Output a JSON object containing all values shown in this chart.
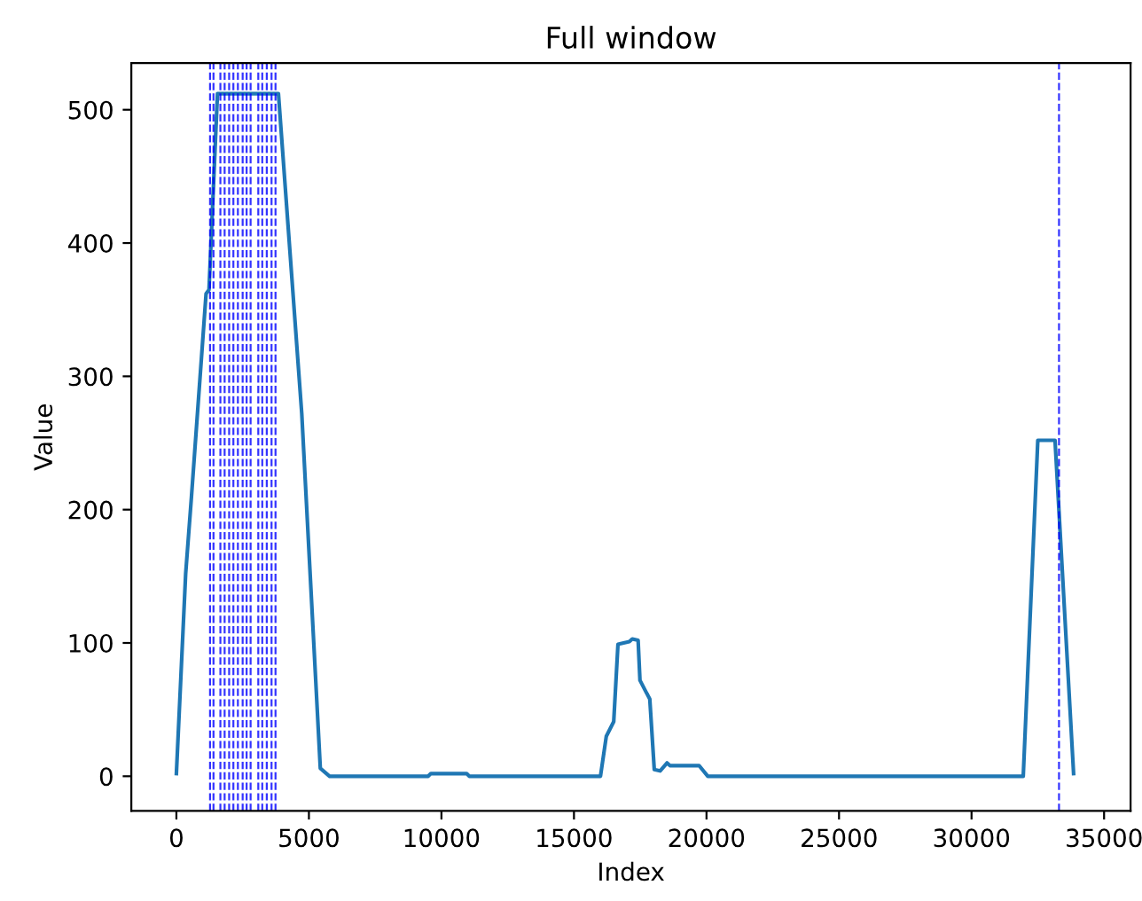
{
  "chart_data": {
    "type": "line",
    "title": "Full window",
    "xlabel": "Index",
    "ylabel": "Value",
    "x": [
      0,
      350,
      570,
      1120,
      1230,
      1550,
      3850,
      4730,
      5430,
      5780,
      9500,
      9600,
      10950,
      11050,
      16000,
      16220,
      16500,
      16660,
      17090,
      17200,
      17420,
      17490,
      17750,
      17860,
      18030,
      18250,
      18510,
      18620,
      19720,
      20050,
      31950,
      32500,
      33150,
      33850
    ],
    "series": [
      {
        "color": "#1f77b4",
        "values": [
          2,
          152,
          210,
          362,
          365,
          512,
          512,
          272,
          6,
          0,
          0,
          2,
          2,
          0,
          0,
          30,
          41,
          99,
          101,
          103,
          102,
          72,
          62,
          58,
          5,
          4,
          10,
          8,
          8,
          0,
          0,
          252,
          252,
          2
        ]
      }
    ],
    "xlim": [
      -1700,
      36000
    ],
    "ylim": [
      -26,
      535
    ],
    "xticks": [
      0,
      5000,
      10000,
      15000,
      20000,
      25000,
      30000,
      35000
    ],
    "yticks": [
      0,
      100,
      200,
      300,
      400,
      500
    ],
    "grid": false,
    "legend": false,
    "ref_lines": [
      {
        "axis": "x",
        "value": 1270,
        "color": "#0000ff",
        "line_style": "dashed"
      },
      {
        "axis": "x",
        "value": 1400,
        "color": "#0000ff",
        "line_style": "dashed"
      },
      {
        "axis": "x",
        "value": 1660,
        "color": "#0000ff",
        "line_style": "dashed"
      },
      {
        "axis": "x",
        "value": 1820,
        "color": "#0000ff",
        "line_style": "dashed"
      },
      {
        "axis": "x",
        "value": 1990,
        "color": "#0000ff",
        "line_style": "dashed"
      },
      {
        "axis": "x",
        "value": 2150,
        "color": "#0000ff",
        "line_style": "dashed"
      },
      {
        "axis": "x",
        "value": 2320,
        "color": "#0000ff",
        "line_style": "dashed"
      },
      {
        "axis": "x",
        "value": 2500,
        "color": "#0000ff",
        "line_style": "dashed"
      },
      {
        "axis": "x",
        "value": 2650,
        "color": "#0000ff",
        "line_style": "dashed"
      },
      {
        "axis": "x",
        "value": 2800,
        "color": "#0000ff",
        "line_style": "dashed"
      },
      {
        "axis": "x",
        "value": 3090,
        "color": "#0000ff",
        "line_style": "dashed"
      },
      {
        "axis": "x",
        "value": 3240,
        "color": "#0000ff",
        "line_style": "dashed"
      },
      {
        "axis": "x",
        "value": 3410,
        "color": "#0000ff",
        "line_style": "dashed"
      },
      {
        "axis": "x",
        "value": 3590,
        "color": "#0000ff",
        "line_style": "dashed"
      },
      {
        "axis": "x",
        "value": 3740,
        "color": "#0000ff",
        "line_style": "dashed"
      },
      {
        "axis": "x",
        "value": 33300,
        "color": "#0000ff",
        "line_style": "dashed"
      }
    ]
  }
}
